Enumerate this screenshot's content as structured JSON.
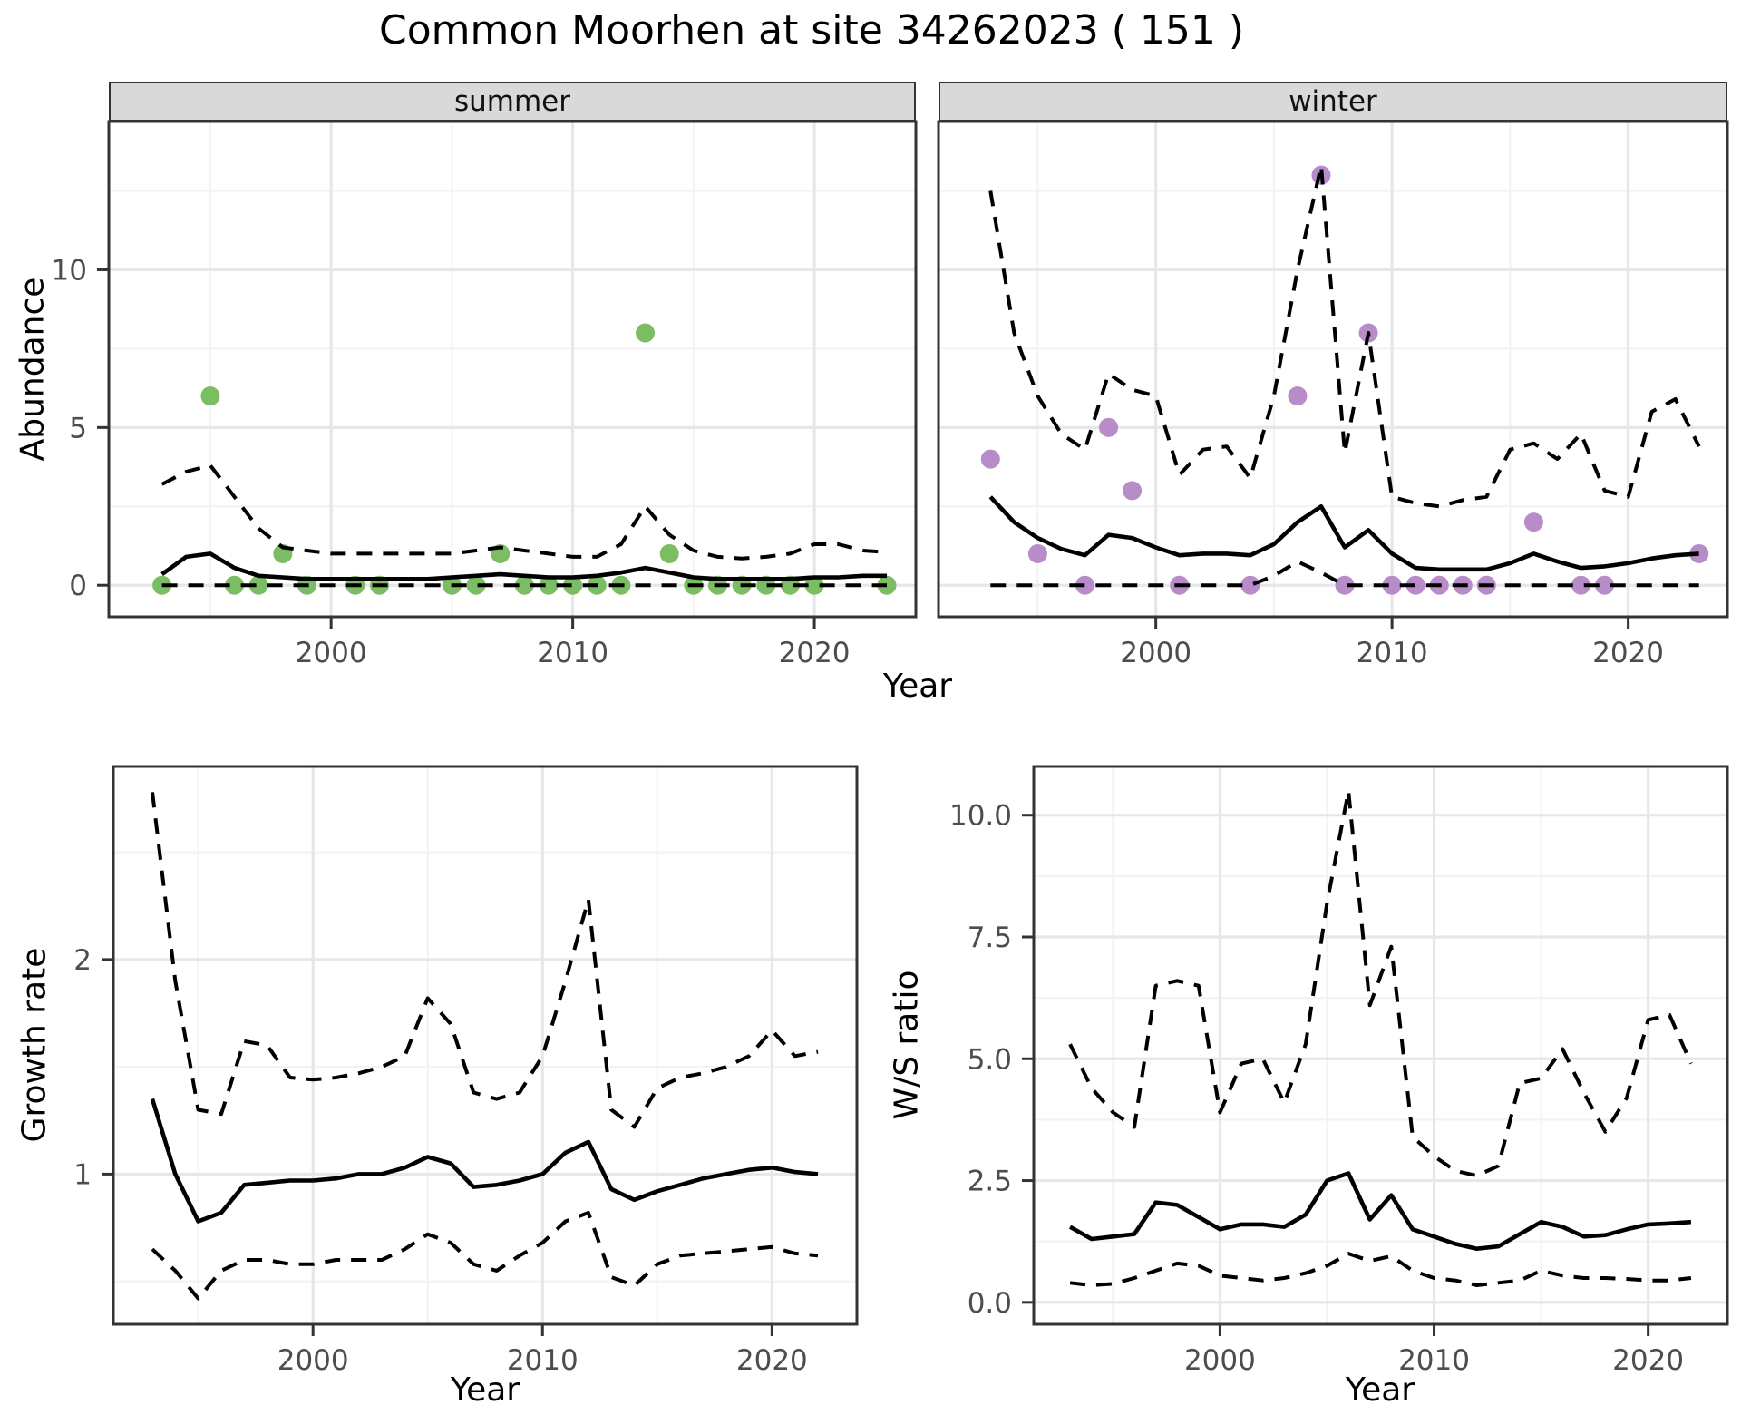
{
  "title": "Common Moorhen at site 34262023 ( 151 )",
  "facets": {
    "summer": "summer",
    "winter": "winter"
  },
  "axis_titles": {
    "abundance": "Abundance",
    "year_top": "Year",
    "growth": "Growth rate",
    "ws": "W/S ratio",
    "year_growth": "Year",
    "year_ws": "Year"
  },
  "colors": {
    "summer_point": "#7BBD62",
    "winter_point": "#B78CC8",
    "line": "#000000",
    "grid_major": "#E7E7E7",
    "grid_minor": "#F3F3F3",
    "panel_border": "#333333",
    "strip_bg": "#D9D9D9",
    "axis_text": "#4D4D4D"
  },
  "chart_data": [
    {
      "id": "summer",
      "type": "line",
      "facet_label": "summer",
      "xlabel": "Year",
      "ylabel": "Abundance",
      "xlim": [
        1990.8,
        2024.2
      ],
      "ylim": [
        -1.0,
        14.7
      ],
      "xticks": [
        2000,
        2010,
        2020
      ],
      "xtick_labels": [
        "2000",
        "2010",
        "2020"
      ],
      "xminor": [
        1995,
        2005,
        2015
      ],
      "yticks": [
        0,
        5,
        10
      ],
      "ytick_labels": [
        "0",
        "5",
        "10"
      ],
      "yminor": [
        2.5,
        7.5,
        12.5
      ],
      "point_color": "#7BBD62",
      "x": [
        1993,
        1994,
        1995,
        1996,
        1997,
        1998,
        1999,
        2000,
        2001,
        2002,
        2003,
        2004,
        2005,
        2006,
        2007,
        2008,
        2009,
        2010,
        2011,
        2012,
        2013,
        2014,
        2015,
        2016,
        2017,
        2018,
        2019,
        2020,
        2021,
        2022,
        2023
      ],
      "series": [
        {
          "name": "median",
          "style": "solid",
          "values": [
            0.35,
            0.9,
            1.0,
            0.55,
            0.3,
            0.25,
            0.2,
            0.2,
            0.2,
            0.2,
            0.2,
            0.2,
            0.25,
            0.3,
            0.35,
            0.3,
            0.25,
            0.25,
            0.3,
            0.4,
            0.55,
            0.4,
            0.25,
            0.2,
            0.2,
            0.2,
            0.2,
            0.25,
            0.25,
            0.3,
            0.3
          ]
        },
        {
          "name": "upper_ci",
          "style": "dashed",
          "values": [
            3.2,
            3.6,
            3.8,
            2.8,
            1.8,
            1.2,
            1.1,
            1.0,
            1.0,
            1.0,
            1.0,
            1.0,
            1.0,
            1.1,
            1.2,
            1.1,
            1.0,
            0.9,
            0.9,
            1.3,
            2.5,
            1.6,
            1.1,
            0.9,
            0.85,
            0.9,
            1.0,
            1.3,
            1.3,
            1.1,
            1.05
          ]
        },
        {
          "name": "lower_ci",
          "style": "dashed",
          "values": [
            0,
            0,
            0,
            0,
            0,
            0,
            0,
            0,
            0,
            0,
            0,
            0,
            0,
            0,
            0,
            0,
            0,
            0,
            0,
            0,
            0,
            0,
            0,
            0,
            0,
            0,
            0,
            0,
            0,
            0,
            0
          ]
        }
      ],
      "points": [
        [
          1993,
          0
        ],
        [
          1995,
          6
        ],
        [
          1996,
          0
        ],
        [
          1997,
          0
        ],
        [
          1998,
          1
        ],
        [
          1999,
          0
        ],
        [
          2001,
          0
        ],
        [
          2002,
          0
        ],
        [
          2005,
          0
        ],
        [
          2006,
          0
        ],
        [
          2007,
          1
        ],
        [
          2008,
          0
        ],
        [
          2009,
          0
        ],
        [
          2010,
          0
        ],
        [
          2011,
          0
        ],
        [
          2012,
          0
        ],
        [
          2013,
          8
        ],
        [
          2014,
          1
        ],
        [
          2015,
          0
        ],
        [
          2016,
          0
        ],
        [
          2017,
          0
        ],
        [
          2018,
          0
        ],
        [
          2019,
          0
        ],
        [
          2020,
          0
        ],
        [
          2023,
          0
        ]
      ]
    },
    {
      "id": "winter",
      "type": "line",
      "facet_label": "winter",
      "xlabel": "Year",
      "ylabel": "Abundance",
      "xlim": [
        1990.8,
        2024.2
      ],
      "ylim": [
        -1.0,
        14.7
      ],
      "xticks": [
        2000,
        2010,
        2020
      ],
      "xtick_labels": [
        "2000",
        "2010",
        "2020"
      ],
      "xminor": [
        1995,
        2005,
        2015
      ],
      "yticks": [
        0,
        5,
        10
      ],
      "yminor": [
        2.5,
        7.5,
        12.5
      ],
      "point_color": "#B78CC8",
      "x": [
        1993,
        1994,
        1995,
        1996,
        1997,
        1998,
        1999,
        2000,
        2001,
        2002,
        2003,
        2004,
        2005,
        2006,
        2007,
        2008,
        2009,
        2010,
        2011,
        2012,
        2013,
        2014,
        2015,
        2016,
        2017,
        2018,
        2019,
        2020,
        2021,
        2022,
        2023
      ],
      "series": [
        {
          "name": "median",
          "style": "solid",
          "values": [
            2.8,
            2.0,
            1.5,
            1.15,
            0.95,
            1.6,
            1.5,
            1.2,
            0.95,
            1.0,
            1.0,
            0.95,
            1.3,
            2.0,
            2.5,
            1.2,
            1.75,
            1.0,
            0.55,
            0.5,
            0.5,
            0.5,
            0.7,
            1.0,
            0.75,
            0.55,
            0.6,
            0.7,
            0.85,
            0.95,
            1.0
          ]
        },
        {
          "name": "upper_ci",
          "style": "dashed",
          "values": [
            12.5,
            8.0,
            6.0,
            4.8,
            4.3,
            6.7,
            6.2,
            6.0,
            3.5,
            4.3,
            4.4,
            3.4,
            6.0,
            10.0,
            13.3,
            4.2,
            8.0,
            2.8,
            2.6,
            2.5,
            2.7,
            2.8,
            4.3,
            4.5,
            4.0,
            4.8,
            3.0,
            2.8,
            5.5,
            5.9,
            4.4
          ]
        },
        {
          "name": "lower_ci",
          "style": "dashed",
          "values": [
            0,
            0,
            0,
            0,
            0,
            0,
            0,
            0,
            0,
            0,
            0,
            0,
            0.3,
            0.75,
            0.4,
            0,
            0,
            0,
            0,
            0,
            0,
            0,
            0,
            0,
            0,
            0,
            0,
            0,
            0,
            0,
            0
          ]
        }
      ],
      "points": [
        [
          1993,
          4
        ],
        [
          1995,
          1
        ],
        [
          1997,
          0
        ],
        [
          1998,
          5
        ],
        [
          1999,
          3
        ],
        [
          2001,
          0
        ],
        [
          2004,
          0
        ],
        [
          2006,
          6
        ],
        [
          2007,
          13
        ],
        [
          2008,
          0
        ],
        [
          2009,
          8
        ],
        [
          2010,
          0
        ],
        [
          2011,
          0
        ],
        [
          2012,
          0
        ],
        [
          2013,
          0
        ],
        [
          2014,
          0
        ],
        [
          2016,
          2
        ],
        [
          2018,
          0
        ],
        [
          2019,
          0
        ],
        [
          2023,
          1
        ]
      ]
    },
    {
      "id": "growth",
      "type": "line",
      "xlabel": "Year",
      "ylabel": "Growth rate",
      "xlim": [
        1991.3,
        2023.7
      ],
      "ylim": [
        0.3,
        2.9
      ],
      "xticks": [
        2000,
        2010,
        2020
      ],
      "xtick_labels": [
        "2000",
        "2010",
        "2020"
      ],
      "xminor": [
        1995,
        2005,
        2015
      ],
      "yticks": [
        1,
        2
      ],
      "ytick_labels": [
        "1",
        "2"
      ],
      "yminor": [
        0.5,
        1.5,
        2.5
      ],
      "x": [
        1993,
        1994,
        1995,
        1996,
        1997,
        1998,
        1999,
        2000,
        2001,
        2002,
        2003,
        2004,
        2005,
        2006,
        2007,
        2008,
        2009,
        2010,
        2011,
        2012,
        2013,
        2014,
        2015,
        2016,
        2017,
        2018,
        2019,
        2020,
        2021,
        2022
      ],
      "series": [
        {
          "name": "median",
          "style": "solid",
          "values": [
            1.35,
            1.0,
            0.78,
            0.82,
            0.95,
            0.96,
            0.97,
            0.97,
            0.98,
            1.0,
            1.0,
            1.03,
            1.08,
            1.05,
            0.94,
            0.95,
            0.97,
            1.0,
            1.1,
            1.15,
            0.93,
            0.88,
            0.92,
            0.95,
            0.98,
            1.0,
            1.02,
            1.03,
            1.01,
            1.0
          ]
        },
        {
          "name": "upper_ci",
          "style": "dashed",
          "values": [
            2.78,
            1.9,
            1.3,
            1.28,
            1.62,
            1.6,
            1.45,
            1.44,
            1.45,
            1.47,
            1.5,
            1.55,
            1.82,
            1.7,
            1.38,
            1.35,
            1.38,
            1.55,
            1.9,
            2.28,
            1.3,
            1.22,
            1.4,
            1.45,
            1.47,
            1.5,
            1.55,
            1.67,
            1.55,
            1.57
          ]
        },
        {
          "name": "lower_ci",
          "style": "dashed",
          "values": [
            0.65,
            0.55,
            0.42,
            0.55,
            0.6,
            0.6,
            0.58,
            0.58,
            0.6,
            0.6,
            0.6,
            0.65,
            0.72,
            0.68,
            0.58,
            0.55,
            0.62,
            0.68,
            0.78,
            0.82,
            0.52,
            0.48,
            0.58,
            0.62,
            0.63,
            0.64,
            0.65,
            0.66,
            0.63,
            0.62
          ]
        }
      ],
      "points": []
    },
    {
      "id": "ws",
      "type": "line",
      "xlabel": "Year",
      "ylabel": "W/S ratio",
      "xlim": [
        1991.3,
        2023.7
      ],
      "ylim": [
        -0.45,
        11.0
      ],
      "xticks": [
        2000,
        2010,
        2020
      ],
      "xtick_labels": [
        "2000",
        "2010",
        "2020"
      ],
      "xminor": [
        1995,
        2005,
        2015
      ],
      "yticks": [
        0,
        2.5,
        5,
        7.5,
        10
      ],
      "ytick_labels": [
        "0.0",
        "2.5",
        "5.0",
        "7.5",
        "10.0"
      ],
      "yminor": [
        1.25,
        3.75,
        6.25,
        8.75
      ],
      "x": [
        1993,
        1994,
        1995,
        1996,
        1997,
        1998,
        1999,
        2000,
        2001,
        2002,
        2003,
        2004,
        2005,
        2006,
        2007,
        2008,
        2009,
        2010,
        2011,
        2012,
        2013,
        2014,
        2015,
        2016,
        2017,
        2018,
        2019,
        2020,
        2021,
        2022
      ],
      "series": [
        {
          "name": "median",
          "style": "solid",
          "values": [
            1.55,
            1.3,
            1.35,
            1.4,
            2.05,
            2.0,
            1.75,
            1.5,
            1.6,
            1.6,
            1.55,
            1.8,
            2.5,
            2.65,
            1.7,
            2.2,
            1.5,
            1.35,
            1.2,
            1.1,
            1.15,
            1.4,
            1.65,
            1.55,
            1.35,
            1.38,
            1.5,
            1.6,
            1.62,
            1.65
          ]
        },
        {
          "name": "upper_ci",
          "style": "dashed",
          "values": [
            5.3,
            4.4,
            3.9,
            3.6,
            6.5,
            6.6,
            6.5,
            3.9,
            4.9,
            5.0,
            4.1,
            5.3,
            8.2,
            10.5,
            6.1,
            7.3,
            3.4,
            3.0,
            2.7,
            2.6,
            2.8,
            4.5,
            4.6,
            5.2,
            4.3,
            3.5,
            4.2,
            5.8,
            5.9,
            4.9
          ]
        },
        {
          "name": "lower_ci",
          "style": "dashed",
          "values": [
            0.4,
            0.35,
            0.38,
            0.5,
            0.65,
            0.8,
            0.75,
            0.55,
            0.5,
            0.45,
            0.5,
            0.6,
            0.75,
            1.0,
            0.85,
            0.95,
            0.65,
            0.5,
            0.45,
            0.35,
            0.4,
            0.45,
            0.65,
            0.55,
            0.5,
            0.5,
            0.48,
            0.45,
            0.45,
            0.5
          ]
        }
      ],
      "points": []
    }
  ]
}
